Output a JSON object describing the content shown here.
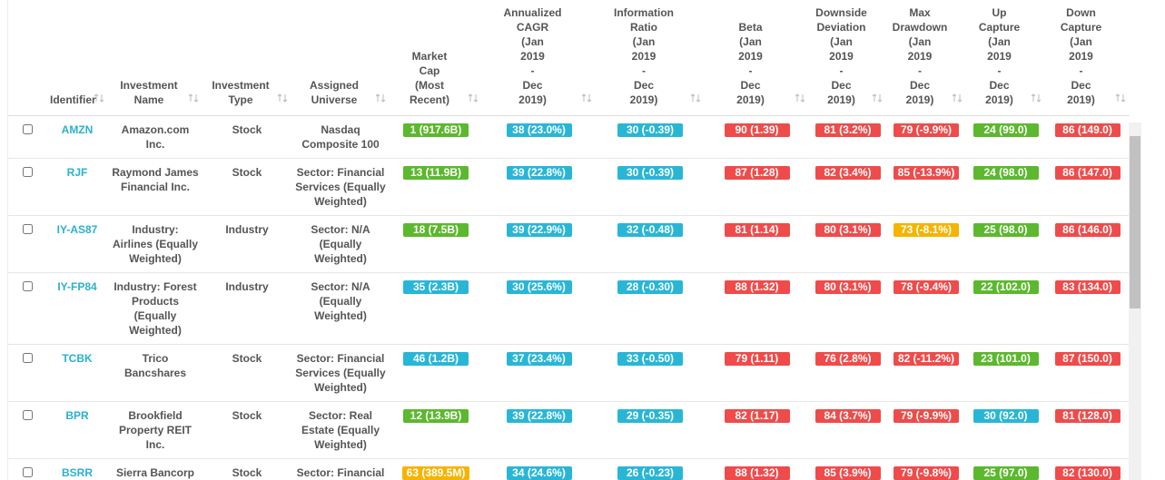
{
  "table": {
    "columns": [
      {
        "lines": [
          "Identifier"
        ]
      },
      {
        "lines": [
          "Investment",
          "Name"
        ]
      },
      {
        "lines": [
          "Investment",
          "Type"
        ]
      },
      {
        "lines": [
          "Assigned",
          "Universe"
        ]
      },
      {
        "lines": [
          "Market",
          "Cap",
          "(Most",
          "Recent)"
        ]
      },
      {
        "lines": [
          "Annualized",
          "CAGR",
          "(Jan",
          "2019",
          "-",
          "Dec",
          "2019)"
        ]
      },
      {
        "lines": [
          "Information",
          "Ratio",
          "(Jan",
          "2019",
          "-",
          "Dec",
          "2019)"
        ]
      },
      {
        "lines": [
          "Beta",
          "(Jan",
          "2019",
          "-",
          "Dec",
          "2019)"
        ]
      },
      {
        "lines": [
          "Downside",
          "Deviation",
          "(Jan",
          "2019",
          "-",
          "Dec",
          "2019)"
        ]
      },
      {
        "lines": [
          "Max",
          "Drawdown",
          "(Jan",
          "2019",
          "-",
          "Dec",
          "2019)"
        ]
      },
      {
        "lines": [
          "Up",
          "Capture",
          "(Jan",
          "2019",
          "-",
          "Dec",
          "2019)"
        ]
      },
      {
        "lines": [
          "Down",
          "Capture",
          "(Jan",
          "2019",
          "-",
          "Dec",
          "2019)"
        ]
      }
    ],
    "rows": [
      {
        "identifier": "AMZN",
        "name": "Amazon.com Inc.",
        "type": "Stock",
        "universe": "Nasdaq Composite 100",
        "scores": [
          {
            "text": "1 (917.6B)",
            "color": "#5cb82e"
          },
          {
            "text": "38 (23.0%)",
            "color": "#29b6d6"
          },
          {
            "text": "30 (-0.39)",
            "color": "#29b6d6"
          },
          {
            "text": "90 (1.39)",
            "color": "#ef4b4b"
          },
          {
            "text": "81 (3.2%)",
            "color": "#ef4b4b"
          },
          {
            "text": "79 (-9.9%)",
            "color": "#ef4b4b"
          },
          {
            "text": "24 (99.0)",
            "color": "#5cb82e"
          },
          {
            "text": "86 (149.0)",
            "color": "#ef4b4b"
          }
        ]
      },
      {
        "identifier": "RJF",
        "name": "Raymond James Financial Inc.",
        "type": "Stock",
        "universe": "Sector: Financial Services (Equally Weighted)",
        "scores": [
          {
            "text": "13 (11.9B)",
            "color": "#5cb82e"
          },
          {
            "text": "39 (22.8%)",
            "color": "#29b6d6"
          },
          {
            "text": "30 (-0.39)",
            "color": "#29b6d6"
          },
          {
            "text": "87 (1.28)",
            "color": "#ef4b4b"
          },
          {
            "text": "82 (3.4%)",
            "color": "#ef4b4b"
          },
          {
            "text": "85 (-13.9%)",
            "color": "#ef4b4b"
          },
          {
            "text": "24 (98.0)",
            "color": "#5cb82e"
          },
          {
            "text": "86 (147.0)",
            "color": "#ef4b4b"
          }
        ]
      },
      {
        "identifier": "IY-AS87",
        "name": "Industry: Airlines (Equally Weighted)",
        "type": "Industry",
        "universe": "Sector: N/A (Equally Weighted)",
        "scores": [
          {
            "text": "18 (7.5B)",
            "color": "#5cb82e"
          },
          {
            "text": "39 (22.9%)",
            "color": "#29b6d6"
          },
          {
            "text": "32 (-0.48)",
            "color": "#29b6d6"
          },
          {
            "text": "81 (1.14)",
            "color": "#ef4b4b"
          },
          {
            "text": "80 (3.1%)",
            "color": "#ef4b4b"
          },
          {
            "text": "73 (-8.1%)",
            "color": "#f5b400"
          },
          {
            "text": "25 (98.0)",
            "color": "#5cb82e"
          },
          {
            "text": "86 (146.0)",
            "color": "#ef4b4b"
          }
        ]
      },
      {
        "identifier": "IY-FP84",
        "name": "Industry: Forest Products (Equally Weighted)",
        "type": "Industry",
        "universe": "Sector: N/A (Equally Weighted)",
        "scores": [
          {
            "text": "35 (2.3B)",
            "color": "#29b6d6"
          },
          {
            "text": "30 (25.6%)",
            "color": "#29b6d6"
          },
          {
            "text": "28 (-0.30)",
            "color": "#29b6d6"
          },
          {
            "text": "88 (1.32)",
            "color": "#ef4b4b"
          },
          {
            "text": "80 (3.1%)",
            "color": "#ef4b4b"
          },
          {
            "text": "78 (-9.4%)",
            "color": "#ef4b4b"
          },
          {
            "text": "22 (102.0)",
            "color": "#5cb82e"
          },
          {
            "text": "83 (134.0)",
            "color": "#ef4b4b"
          }
        ]
      },
      {
        "identifier": "TCBK",
        "name": "Trico Bancshares",
        "type": "Stock",
        "universe": "Sector: Financial Services (Equally Weighted)",
        "scores": [
          {
            "text": "46 (1.2B)",
            "color": "#29b6d6"
          },
          {
            "text": "37 (23.4%)",
            "color": "#29b6d6"
          },
          {
            "text": "33 (-0.50)",
            "color": "#29b6d6"
          },
          {
            "text": "79 (1.11)",
            "color": "#ef4b4b"
          },
          {
            "text": "76 (2.8%)",
            "color": "#ef4b4b"
          },
          {
            "text": "82 (-11.2%)",
            "color": "#ef4b4b"
          },
          {
            "text": "23 (101.0)",
            "color": "#5cb82e"
          },
          {
            "text": "87 (150.0)",
            "color": "#ef4b4b"
          }
        ]
      },
      {
        "identifier": "BPR",
        "name": "Brookfield Property REIT Inc.",
        "type": "Stock",
        "universe": "Sector: Real Estate (Equally Weighted)",
        "scores": [
          {
            "text": "12 (13.9B)",
            "color": "#5cb82e"
          },
          {
            "text": "39 (22.8%)",
            "color": "#29b6d6"
          },
          {
            "text": "29 (-0.35)",
            "color": "#29b6d6"
          },
          {
            "text": "82 (1.17)",
            "color": "#ef4b4b"
          },
          {
            "text": "84 (3.7%)",
            "color": "#ef4b4b"
          },
          {
            "text": "79 (-9.9%)",
            "color": "#ef4b4b"
          },
          {
            "text": "30 (92.0)",
            "color": "#29b6d6"
          },
          {
            "text": "81 (128.0)",
            "color": "#ef4b4b"
          }
        ]
      },
      {
        "identifier": "BSRR",
        "name": "Sierra Bancorp",
        "type": "Stock",
        "universe": "Sector: Financial",
        "scores": [
          {
            "text": "63 (389.5M)",
            "color": "#f5b400"
          },
          {
            "text": "34 (24.6%)",
            "color": "#29b6d6"
          },
          {
            "text": "26 (-0.23)",
            "color": "#29b6d6"
          },
          {
            "text": "88 (1.32)",
            "color": "#ef4b4b"
          },
          {
            "text": "85 (3.9%)",
            "color": "#ef4b4b"
          },
          {
            "text": "79 (-9.8%)",
            "color": "#ef4b4b"
          },
          {
            "text": "25 (97.0)",
            "color": "#5cb82e"
          },
          {
            "text": "82 (130.0)",
            "color": "#ef4b4b"
          }
        ]
      }
    ]
  }
}
